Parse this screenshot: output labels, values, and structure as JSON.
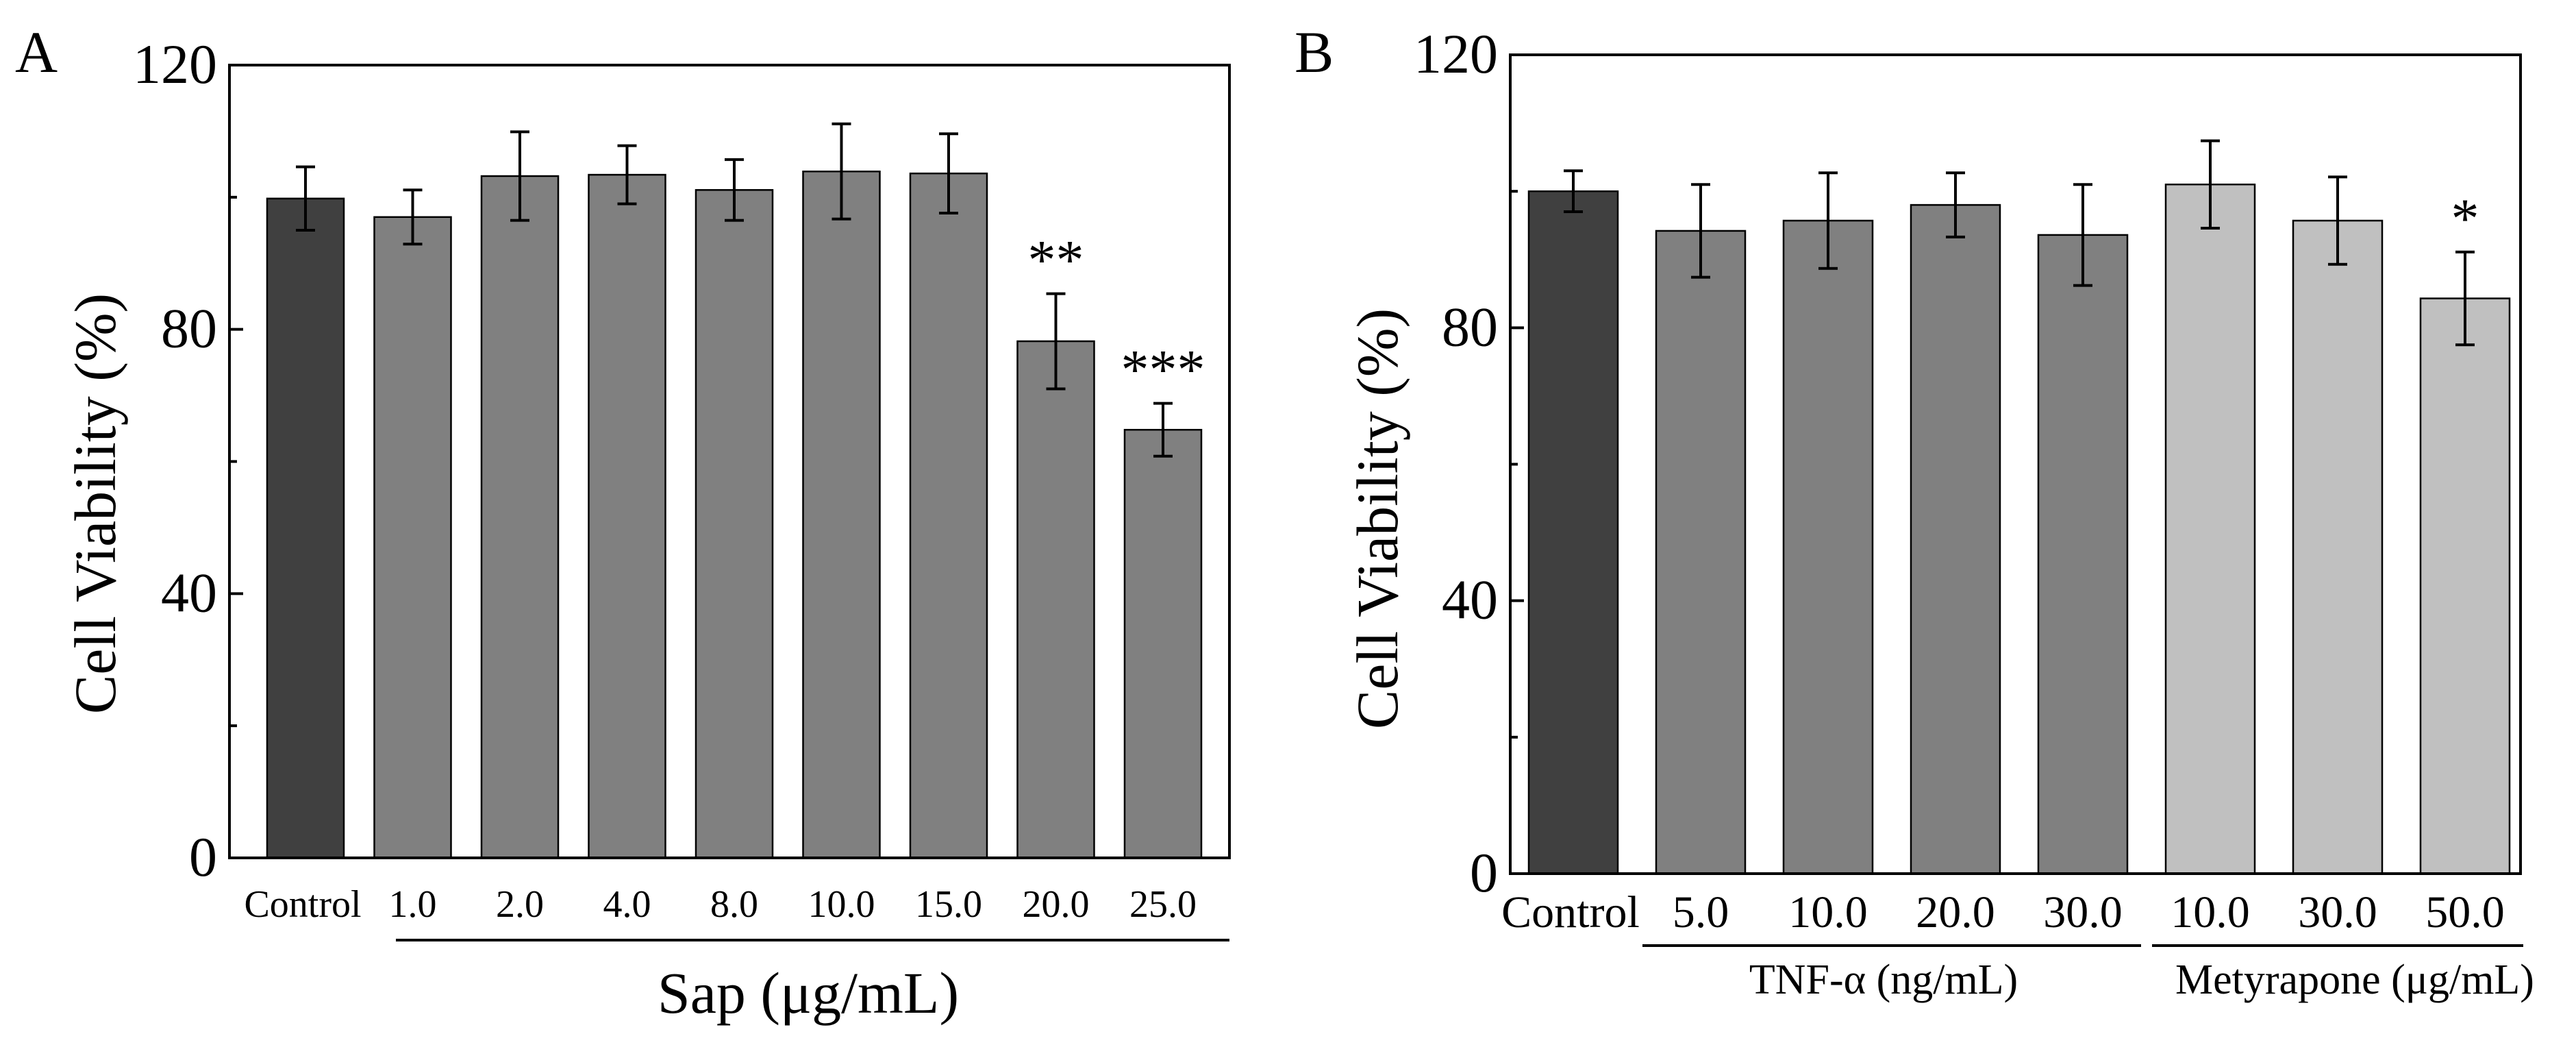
{
  "colors": {
    "control": "#404040",
    "treatment": "#808080",
    "metyrapone": "#c0c0c0",
    "axis": "#000000"
  },
  "chart_data": [
    {
      "panel": "A",
      "type": "bar",
      "ylabel": "Cell Viability (%)",
      "xlabel": "Sap (μg/mL)",
      "ylim": [
        0,
        120
      ],
      "yticks": [
        0,
        40,
        80,
        120
      ],
      "categories": [
        "Control",
        "1.0",
        "2.0",
        "4.0",
        "8.0",
        "10.0",
        "15.0",
        "20.0",
        "25.0"
      ],
      "values": [
        99.8,
        97.0,
        103.2,
        103.4,
        101.1,
        103.9,
        103.6,
        78.2,
        64.8
      ],
      "errors": [
        4.8,
        4.1,
        6.7,
        4.4,
        4.6,
        7.2,
        6.0,
        7.2,
        4.0
      ],
      "fill": [
        "control",
        "treatment",
        "treatment",
        "treatment",
        "treatment",
        "treatment",
        "treatment",
        "treatment",
        "treatment"
      ],
      "annotations": [
        "",
        "",
        "",
        "",
        "",
        "",
        "",
        "**",
        "***"
      ],
      "groups": [
        {
          "label": "Sap (μg/mL)",
          "from": 1,
          "to": 8
        }
      ]
    },
    {
      "panel": "B",
      "type": "bar",
      "ylabel": "Cell Viability (%)",
      "xlabel": "",
      "ylim": [
        0,
        120
      ],
      "yticks": [
        0,
        40,
        80,
        120
      ],
      "categories": [
        "Control",
        "5.0",
        "10.0",
        "20.0",
        "30.0",
        "10.0",
        "30.0",
        "50.0"
      ],
      "values": [
        100.0,
        94.2,
        95.7,
        98.0,
        93.6,
        101.0,
        95.7,
        84.3
      ],
      "errors": [
        3.0,
        6.8,
        7.0,
        4.7,
        7.4,
        6.4,
        6.4,
        6.8
      ],
      "fill": [
        "control",
        "treatment",
        "treatment",
        "treatment",
        "treatment",
        "metyrapone",
        "metyrapone",
        "metyrapone"
      ],
      "annotations": [
        "",
        "",
        "",
        "",
        "",
        "",
        "",
        "*"
      ],
      "groups": [
        {
          "label": "TNF-α (ng/mL)",
          "from": 1,
          "to": 4
        },
        {
          "label": "Metyrapone (μg/mL)",
          "from": 5,
          "to": 7
        }
      ]
    }
  ]
}
